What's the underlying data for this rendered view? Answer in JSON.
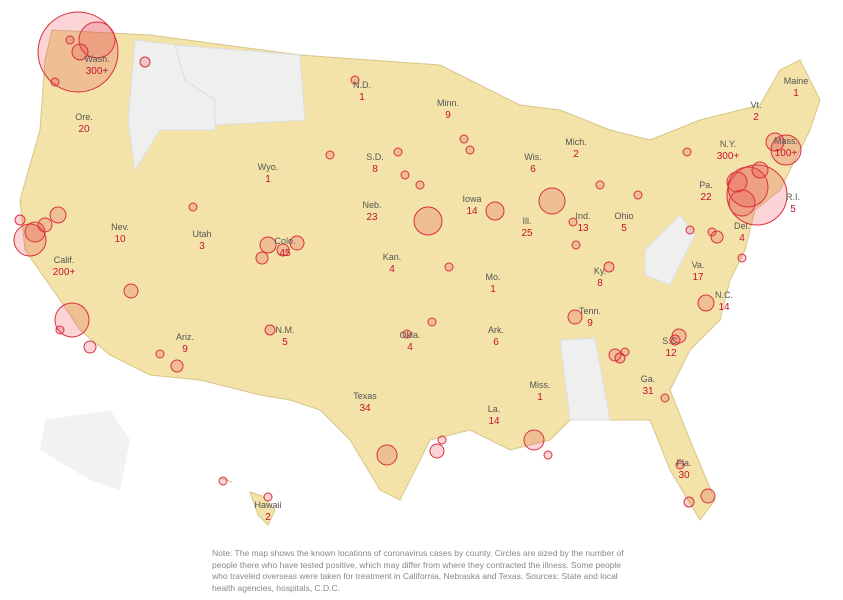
{
  "states": [
    {
      "name": "Wash.",
      "count": "300+"
    },
    {
      "name": "Ore.",
      "count": "20"
    },
    {
      "name": "Calif.",
      "count": "200+"
    },
    {
      "name": "Nev.",
      "count": "10"
    },
    {
      "name": "Utah",
      "count": "3"
    },
    {
      "name": "Ariz.",
      "count": "9"
    },
    {
      "name": "Wyo.",
      "count": "1"
    },
    {
      "name": "Colo.",
      "count": "45"
    },
    {
      "name": "N.M.",
      "count": "5"
    },
    {
      "name": "N.D.",
      "count": "1"
    },
    {
      "name": "S.D.",
      "count": "8"
    },
    {
      "name": "Neb.",
      "count": "23"
    },
    {
      "name": "Kan.",
      "count": "4"
    },
    {
      "name": "Okla.",
      "count": "4"
    },
    {
      "name": "Texas",
      "count": "34"
    },
    {
      "name": "Minn.",
      "count": "9"
    },
    {
      "name": "Iowa",
      "count": "14"
    },
    {
      "name": "Mo.",
      "count": "1"
    },
    {
      "name": "Ark.",
      "count": "6"
    },
    {
      "name": "La.",
      "count": "14"
    },
    {
      "name": "Miss.",
      "count": "1"
    },
    {
      "name": "Wis.",
      "count": "6"
    },
    {
      "name": "Ill.",
      "count": "25"
    },
    {
      "name": "Mich.",
      "count": "2"
    },
    {
      "name": "Ind.",
      "count": "13"
    },
    {
      "name": "Ohio",
      "count": "5"
    },
    {
      "name": "Ky.",
      "count": "8"
    },
    {
      "name": "Tenn.",
      "count": "9"
    },
    {
      "name": "Ga.",
      "count": "31"
    },
    {
      "name": "Fla.",
      "count": "30"
    },
    {
      "name": "S.C.",
      "count": "12"
    },
    {
      "name": "N.C.",
      "count": "14"
    },
    {
      "name": "Va.",
      "count": "17"
    },
    {
      "name": "Del.",
      "count": "4"
    },
    {
      "name": "Pa.",
      "count": "22"
    },
    {
      "name": "N.Y.",
      "count": "300+"
    },
    {
      "name": "Vt.",
      "count": "2"
    },
    {
      "name": "Maine",
      "count": "1"
    },
    {
      "name": "Mass.",
      "count": "100+"
    },
    {
      "name": "R.I.",
      "count": "5"
    },
    {
      "name": "Hawaii",
      "count": "2"
    }
  ],
  "note": "Note: The map shows the known locations of coronavirus cases by county. Circles are sized by the number of people there who have tested positive, which may differ from where they contracted the illness. Some people who traveled overseas were taken for treatment in California, Nebraska and Texas. Sources: State and local health agencies, hospitals, C.D.C."
}
